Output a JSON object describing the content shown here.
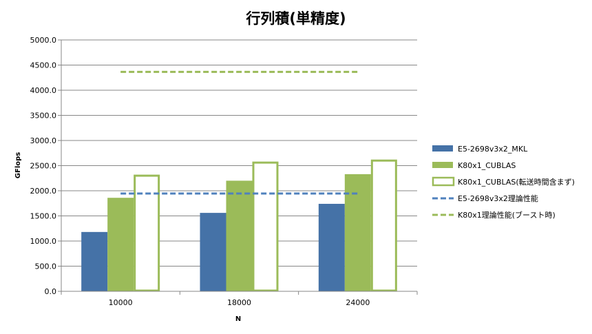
{
  "chart_data": {
    "type": "bar",
    "title": "行列積(単精度)",
    "xlabel": "N",
    "ylabel": "GFlops",
    "ylim": [
      0,
      5000
    ],
    "y_ticks": [
      "0.0",
      "500.0",
      "1000.0",
      "1500.0",
      "2000.0",
      "2500.0",
      "3000.0",
      "3500.0",
      "4000.0",
      "4500.0",
      "5000.0"
    ],
    "grid": true,
    "legend_position": "right",
    "categories": [
      "10000",
      "18000",
      "24000"
    ],
    "series": [
      {
        "name": "E5-2698v3x2_MKL",
        "kind": "bar",
        "color": "#4572A7",
        "values": [
          1180,
          1560,
          1740
        ]
      },
      {
        "name": "K80x1_CUBLAS",
        "kind": "bar",
        "color": "#9BBB59",
        "values": [
          1860,
          2200,
          2330
        ]
      },
      {
        "name": "K80x1_CUBLAS(転送時間含まず)",
        "kind": "bar-outline",
        "color": "#9BBB59",
        "values": [
          2300,
          2560,
          2600
        ]
      },
      {
        "name": "E5-2698v3x2理論性能",
        "kind": "dashed-line",
        "color": "#4F81BD",
        "values": [
          1945,
          1945,
          1945
        ]
      },
      {
        "name": "K80x1理論性能(ブースト時)",
        "kind": "dashed-line",
        "color": "#9BBB59",
        "values": [
          4365,
          4365,
          4365
        ]
      }
    ]
  }
}
